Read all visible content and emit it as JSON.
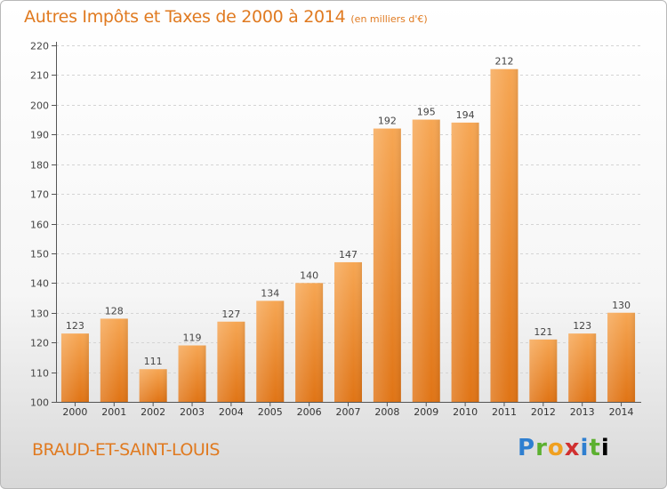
{
  "chart_data": {
    "type": "bar",
    "title": "Autres Impôts et Taxes de 2000 à 2014",
    "subtitle": "(en milliers d'€)",
    "categories": [
      "2000",
      "2001",
      "2002",
      "2003",
      "2004",
      "2005",
      "2006",
      "2007",
      "2008",
      "2009",
      "2010",
      "2011",
      "2012",
      "2013",
      "2014"
    ],
    "values": [
      123,
      128,
      111,
      119,
      127,
      134,
      140,
      147,
      192,
      195,
      194,
      212,
      121,
      123,
      130
    ],
    "ylim": [
      100,
      220
    ],
    "yticks": [
      100,
      110,
      120,
      130,
      140,
      150,
      160,
      170,
      180,
      190,
      200,
      210,
      220
    ],
    "xlabel": "",
    "ylabel": "",
    "grid": true,
    "bar_color_top": "#f6a653",
    "bar_color_bottom": "#e07415"
  },
  "footer": {
    "town": "BRAUD-ET-SAINT-LOUIS",
    "logo_text": "Proxiti"
  },
  "colors": {
    "accent": "#e07a20"
  }
}
